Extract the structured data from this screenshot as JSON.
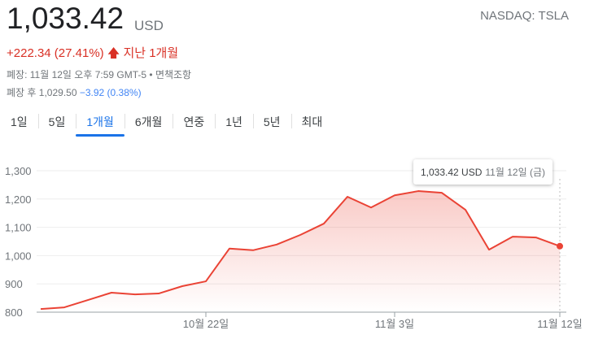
{
  "quote": {
    "price": "1,033.42",
    "currency": "USD",
    "exchange": "NASDAQ: TSLA",
    "change": "+222.34 (27.41%)",
    "change_period": "지난 1개월",
    "closed_info": "폐장: 11월 12일 오후 7:59 GMT-5 • 면책조항",
    "after_label": "폐장 후 1,029.50",
    "after_change": "−3.92 (0.38%)"
  },
  "tabs": [
    {
      "label": "1일"
    },
    {
      "label": "5일"
    },
    {
      "label": "1개월",
      "selected": true
    },
    {
      "label": "6개월"
    },
    {
      "label": "연중"
    },
    {
      "label": "1년"
    },
    {
      "label": "5년"
    },
    {
      "label": "최대"
    }
  ],
  "tooltip": {
    "value": "1,033.42 USD",
    "date": "11월 12일 (금)"
  },
  "colors": {
    "line": "#ea4335",
    "up": "#d93025",
    "accent": "#1a73e8"
  },
  "chart_data": {
    "type": "area",
    "ylim": [
      800,
      1300
    ],
    "yticks": [
      {
        "v": 800,
        "label": "800"
      },
      {
        "v": 900,
        "label": "900"
      },
      {
        "v": 1000,
        "label": "1,000"
      },
      {
        "v": 1100,
        "label": "1,100"
      },
      {
        "v": 1200,
        "label": "1,200"
      },
      {
        "v": 1300,
        "label": "1,300"
      }
    ],
    "xticks": [
      {
        "i": 7,
        "label": "10월 22일"
      },
      {
        "i": 15,
        "label": "11월 3일"
      },
      {
        "i": 22,
        "label": "11월 12일"
      }
    ],
    "x": [
      "10-13",
      "10-14",
      "10-15",
      "10-18",
      "10-19",
      "10-20",
      "10-21",
      "10-22",
      "10-25",
      "10-26",
      "10-27",
      "10-28",
      "10-29",
      "11-01",
      "11-02",
      "11-03",
      "11-04",
      "11-05",
      "11-08",
      "11-09",
      "11-10",
      "11-11",
      "11-12"
    ],
    "values": [
      811,
      817,
      843,
      869,
      863,
      866,
      892,
      909,
      1025,
      1019,
      1039,
      1073,
      1113,
      1208,
      1170,
      1213,
      1228,
      1222,
      1162,
      1021,
      1067,
      1064,
      1033.42
    ],
    "grid": true
  }
}
